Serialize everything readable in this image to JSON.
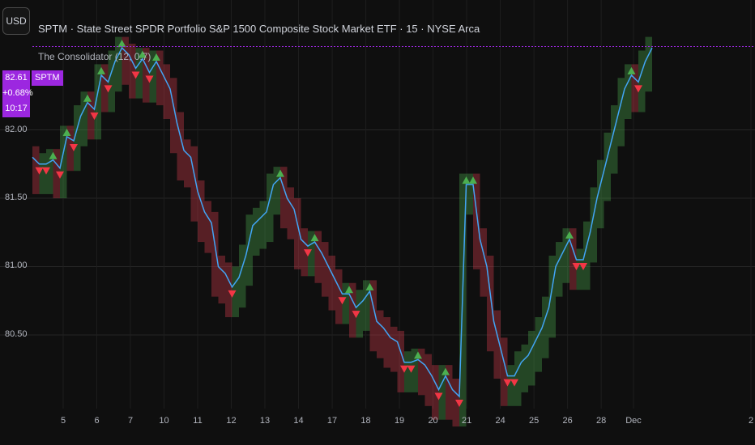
{
  "header": {
    "currency_button": "USD",
    "title": "SPTM · State Street SPDR Portfolio S&P 1500 Composite Stock Market ETF · 15 · NYSE Arca",
    "indicator": "The Consolidator (12, 0.7)"
  },
  "price_label": {
    "price": "82.61",
    "change": "+0.68%",
    "countdown": "10:17",
    "symbol": "SPTM"
  },
  "colors": {
    "background": "#0f0f0f",
    "price_line": "#42a5f5",
    "price_line_alt": "#b05cff",
    "bull_band": "#4caf50",
    "bear_band": "#e0404f",
    "up_marker": "#4caf50",
    "down_marker": "#f23645",
    "price_tag": "#9c27e0"
  },
  "chart_data": {
    "type": "line",
    "title": "SPTM · State Street SPDR Portfolio S&P 1500 Composite Stock Market ETF · 15 · NYSE Arca",
    "y_ticks": [
      "80.50",
      "81.00",
      "81.50",
      "82.00"
    ],
    "x_ticks": [
      "5",
      "6",
      "7",
      "10",
      "11",
      "12",
      "13",
      "14",
      "17",
      "18",
      "19",
      "20",
      "21",
      "24",
      "25",
      "26",
      "28",
      "Dec",
      "2"
    ],
    "ylim": [
      80.05,
      82.95
    ],
    "last_price": 82.61,
    "grid": true,
    "series": [
      {
        "x": [
          0,
          1,
          2,
          3,
          4,
          5,
          6,
          7,
          8,
          9,
          10,
          11,
          12,
          13,
          14,
          15,
          16,
          17,
          18,
          19,
          20,
          21,
          22,
          23,
          24,
          25,
          26,
          27,
          28,
          29,
          30,
          31,
          32,
          33,
          34,
          35,
          36,
          37,
          38,
          39,
          40,
          41,
          42,
          43,
          44,
          45,
          46,
          47,
          48,
          49,
          50,
          51,
          52,
          53,
          54,
          55,
          56,
          57,
          58,
          59,
          60,
          61,
          62,
          63,
          64,
          65,
          66,
          67,
          68,
          69,
          70,
          71,
          72,
          73,
          74,
          75,
          76,
          77,
          78,
          79,
          80,
          81,
          82,
          83,
          84,
          85,
          86,
          87,
          88,
          89,
          90
        ],
        "values": [
          81.8,
          81.75,
          81.75,
          81.78,
          81.72,
          81.95,
          81.92,
          82.1,
          82.2,
          82.15,
          82.4,
          82.35,
          82.5,
          82.6,
          82.55,
          82.45,
          82.52,
          82.42,
          82.5,
          82.4,
          82.3,
          82.05,
          81.85,
          81.8,
          81.55,
          81.4,
          81.32,
          81.0,
          80.95,
          80.85,
          80.92,
          81.08,
          81.3,
          81.35,
          81.4,
          81.6,
          81.65,
          81.5,
          81.42,
          81.2,
          81.15,
          81.18,
          81.1,
          81.0,
          80.9,
          80.8,
          80.8,
          80.7,
          80.75,
          80.82,
          80.6,
          80.55,
          80.48,
          80.45,
          80.3,
          80.3,
          80.32,
          80.28,
          80.2,
          80.1,
          80.2,
          80.1,
          80.05,
          81.6,
          81.6,
          81.2,
          81.0,
          80.6,
          80.4,
          80.2,
          80.2,
          80.3,
          80.35,
          80.45,
          80.55,
          80.7,
          81.0,
          81.1,
          81.2,
          81.05,
          81.05,
          81.25,
          81.5,
          81.7,
          81.9,
          82.1,
          82.3,
          82.4,
          82.35,
          82.5,
          82.6
        ]
      }
    ]
  }
}
